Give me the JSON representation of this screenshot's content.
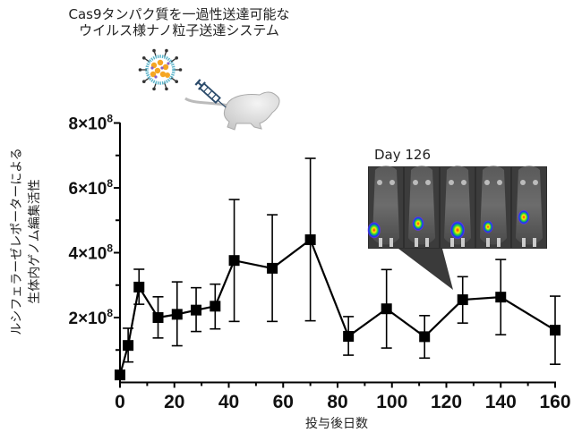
{
  "header": {
    "title_line1": "Cas9タンパク質を一過性送達可能な",
    "title_line2": "ウイルス様ナノ粒子送達システム"
  },
  "illustration": {
    "particle_icon": "virus-like-particle-icon",
    "syringe_icon": "syringe-icon",
    "mouse_icon": "mouse-icon"
  },
  "inset": {
    "label": "Day 126",
    "image_desc": "bioluminescence images of 5 mice",
    "mouse_count": 5
  },
  "chart_data": {
    "type": "line",
    "title": "",
    "xlabel": "投与後日数",
    "ylabel_line1": "ルシフェラーゼレポーターによる",
    "ylabel_line2": "生体内ゲノム編集活性",
    "xlim": [
      0,
      160
    ],
    "ylim": [
      0,
      800000000
    ],
    "x_ticks": [
      0,
      20,
      40,
      60,
      80,
      100,
      120,
      140,
      160
    ],
    "x_tick_labels": [
      "0",
      "20",
      "40",
      "60",
      "80",
      "100",
      "120",
      "140",
      "160"
    ],
    "y_ticks": [
      200000000,
      400000000,
      600000000,
      800000000
    ],
    "y_tick_labels": [
      {
        "mantissa": "2×10",
        "exp": "8"
      },
      {
        "mantissa": "4×10",
        "exp": "8"
      },
      {
        "mantissa": "6×10",
        "exp": "8"
      },
      {
        "mantissa": "8×10",
        "exp": "8"
      }
    ],
    "grid": false,
    "marker": "square",
    "series": [
      {
        "name": "luciferase activity",
        "color": "#000000",
        "x": [
          0,
          3,
          7,
          14,
          21,
          28,
          35,
          42,
          56,
          70,
          84,
          98,
          112,
          126,
          140,
          160
        ],
        "y": [
          23000000,
          114000000,
          294000000,
          200000000,
          210000000,
          223000000,
          235000000,
          376000000,
          352000000,
          440000000,
          142000000,
          227000000,
          141000000,
          255000000,
          263000000,
          161000000
        ],
        "err_low": [
          10000000,
          63000000,
          241000000,
          137000000,
          113000000,
          157000000,
          165000000,
          188000000,
          188000000,
          190000000,
          84000000,
          106000000,
          75000000,
          183000000,
          147000000,
          56000000
        ],
        "err_high": [
          35000000,
          167000000,
          349000000,
          264000000,
          310000000,
          292000000,
          303000000,
          564000000,
          517000000,
          691000000,
          203000000,
          348000000,
          206000000,
          326000000,
          379000000,
          266000000
        ]
      }
    ],
    "annotation": {
      "text": "Day 126",
      "points_to_x": 126
    }
  }
}
